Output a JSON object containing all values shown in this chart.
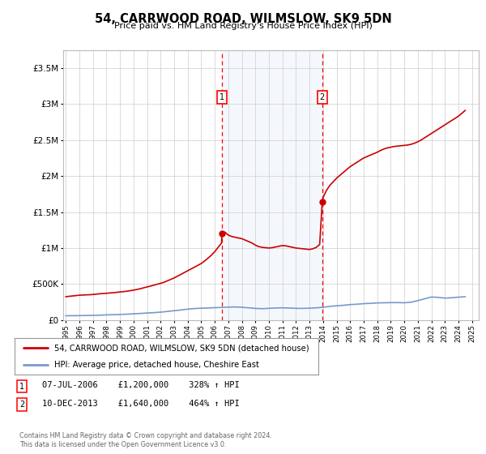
{
  "title": "54, CARRWOOD ROAD, WILMSLOW, SK9 5DN",
  "subtitle": "Price paid vs. HM Land Registry's House Price Index (HPI)",
  "background_color": "#ffffff",
  "ylim": [
    0,
    3750000
  ],
  "xlim_start": 1994.8,
  "xlim_end": 2025.5,
  "yticks": [
    0,
    500000,
    1000000,
    1500000,
    2000000,
    2500000,
    3000000,
    3500000
  ],
  "ytick_labels": [
    "£0",
    "£500K",
    "£1M",
    "£1.5M",
    "£2M",
    "£2.5M",
    "£3M",
    "£3.5M"
  ],
  "grid_color": "#cccccc",
  "sale1_date": 2006.52,
  "sale1_label": "1",
  "sale1_price": 1200000,
  "sale1_text": "07-JUL-2006    £1,200,000    328% ↑ HPI",
  "sale2_date": 2013.94,
  "sale2_label": "2",
  "sale2_price": 1640000,
  "sale2_text": "10-DEC-2013    £1,640,000    464% ↑ HPI",
  "highlight_color": "#cce0f0",
  "dashed_line_color": "#ff0000",
  "sale_marker_color": "#cc0000",
  "hpi_line_color": "#7799cc",
  "price_line_color": "#cc0000",
  "legend_label_price": "54, CARRWOOD ROAD, WILMSLOW, SK9 5DN (detached house)",
  "legend_label_hpi": "HPI: Average price, detached house, Cheshire East",
  "footer": "Contains HM Land Registry data © Crown copyright and database right 2024.\nThis data is licensed under the Open Government Licence v3.0.",
  "hpi_data_x": [
    1995,
    1995.5,
    1996,
    1996.5,
    1997,
    1997.5,
    1998,
    1998.5,
    1999,
    1999.5,
    2000,
    2000.5,
    2001,
    2001.5,
    2002,
    2002.5,
    2003,
    2003.5,
    2004,
    2004.5,
    2005,
    2005.5,
    2006,
    2006.5,
    2007,
    2007.5,
    2008,
    2008.5,
    2009,
    2009.5,
    2010,
    2010.5,
    2011,
    2011.5,
    2012,
    2012.5,
    2013,
    2013.5,
    2014,
    2014.5,
    2015,
    2015.5,
    2016,
    2016.5,
    2017,
    2017.5,
    2018,
    2018.5,
    2019,
    2019.5,
    2020,
    2020.5,
    2021,
    2021.5,
    2022,
    2022.5,
    2023,
    2023.5,
    2024,
    2024.5
  ],
  "hpi_data_y": [
    60000,
    61000,
    62000,
    63500,
    65000,
    68000,
    72000,
    75000,
    78000,
    82000,
    87000,
    92000,
    98000,
    103000,
    110000,
    120000,
    130000,
    140000,
    152000,
    160000,
    165000,
    168000,
    172000,
    175000,
    180000,
    182000,
    178000,
    170000,
    162000,
    158000,
    163000,
    168000,
    170000,
    167000,
    163000,
    162000,
    165000,
    170000,
    178000,
    190000,
    198000,
    205000,
    215000,
    220000,
    228000,
    232000,
    238000,
    240000,
    242000,
    243000,
    240000,
    248000,
    270000,
    295000,
    320000,
    315000,
    305000,
    310000,
    318000,
    325000
  ],
  "price_data_x": [
    1995,
    1995.25,
    1995.5,
    1995.75,
    1996,
    1996.25,
    1996.5,
    1996.75,
    1997,
    1997.25,
    1997.5,
    1997.75,
    1998,
    1998.25,
    1998.5,
    1998.75,
    1999,
    1999.25,
    1999.5,
    1999.75,
    2000,
    2000.25,
    2000.5,
    2000.75,
    2001,
    2001.25,
    2001.5,
    2001.75,
    2002,
    2002.25,
    2002.5,
    2002.75,
    2003,
    2003.25,
    2003.5,
    2003.75,
    2004,
    2004.25,
    2004.5,
    2004.75,
    2005,
    2005.25,
    2005.5,
    2005.75,
    2006,
    2006.25,
    2006.5,
    2006.52,
    2006.75,
    2007,
    2007.25,
    2007.5,
    2007.75,
    2008,
    2008.25,
    2008.5,
    2008.75,
    2009,
    2009.25,
    2009.5,
    2009.75,
    2010,
    2010.25,
    2010.5,
    2010.75,
    2011,
    2011.25,
    2011.5,
    2011.75,
    2012,
    2012.25,
    2012.5,
    2012.75,
    2013,
    2013.25,
    2013.5,
    2013.75,
    2013.94,
    2014,
    2014.25,
    2014.5,
    2014.75,
    2015,
    2015.25,
    2015.5,
    2015.75,
    2016,
    2016.25,
    2016.5,
    2016.75,
    2017,
    2017.25,
    2017.5,
    2017.75,
    2018,
    2018.25,
    2018.5,
    2018.75,
    2019,
    2019.25,
    2019.5,
    2019.75,
    2020,
    2020.25,
    2020.5,
    2020.75,
    2021,
    2021.25,
    2021.5,
    2021.75,
    2022,
    2022.25,
    2022.5,
    2022.75,
    2023,
    2023.25,
    2023.5,
    2023.75,
    2024,
    2024.25,
    2024.5
  ],
  "price_data_y": [
    325000,
    330000,
    335000,
    340000,
    345000,
    348000,
    350000,
    352000,
    355000,
    360000,
    365000,
    368000,
    372000,
    376000,
    380000,
    385000,
    390000,
    395000,
    400000,
    408000,
    416000,
    425000,
    435000,
    448000,
    460000,
    472000,
    485000,
    498000,
    510000,
    525000,
    545000,
    565000,
    585000,
    610000,
    635000,
    660000,
    685000,
    710000,
    735000,
    760000,
    785000,
    820000,
    860000,
    900000,
    950000,
    1010000,
    1070000,
    1200000,
    1220000,
    1180000,
    1160000,
    1150000,
    1140000,
    1130000,
    1110000,
    1090000,
    1070000,
    1040000,
    1020000,
    1010000,
    1005000,
    1000000,
    1005000,
    1015000,
    1025000,
    1035000,
    1030000,
    1020000,
    1010000,
    1000000,
    995000,
    990000,
    985000,
    980000,
    990000,
    1010000,
    1050000,
    1640000,
    1700000,
    1800000,
    1870000,
    1920000,
    1970000,
    2010000,
    2050000,
    2090000,
    2130000,
    2160000,
    2190000,
    2220000,
    2250000,
    2270000,
    2290000,
    2310000,
    2330000,
    2355000,
    2375000,
    2390000,
    2400000,
    2410000,
    2415000,
    2420000,
    2425000,
    2430000,
    2440000,
    2455000,
    2475000,
    2500000,
    2530000,
    2560000,
    2590000,
    2620000,
    2650000,
    2680000,
    2710000,
    2740000,
    2770000,
    2800000,
    2830000,
    2870000,
    2910000
  ]
}
